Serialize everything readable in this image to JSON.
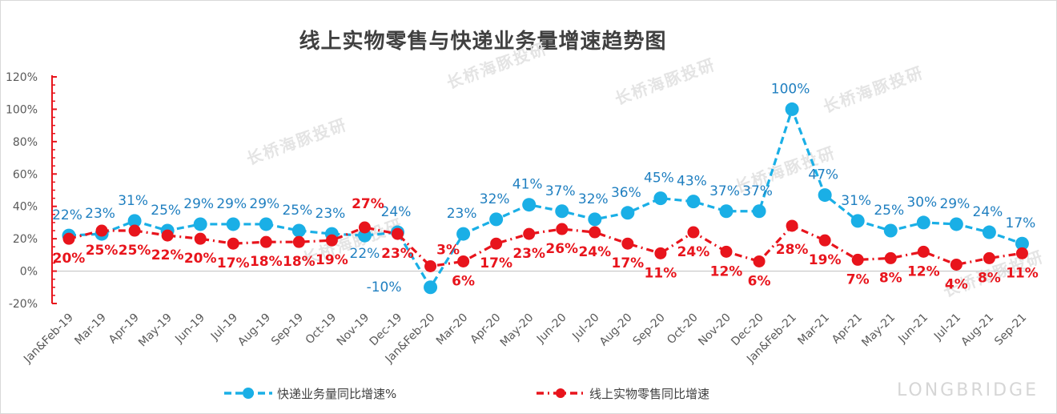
{
  "chart_data": {
    "type": "line",
    "title": "线上实物零售与快递业务量增速趋势图",
    "xlabel": "",
    "ylabel": "",
    "ylim": [
      -20,
      120
    ],
    "yticks": [
      "120%",
      "100%",
      "80%",
      "60%",
      "40%",
      "20%",
      "0%",
      "-20%"
    ],
    "grid": false,
    "legend_position": "bottom",
    "categories": [
      "Jan&Feb-19",
      "Mar-19",
      "Apr-19",
      "May-19",
      "Jun-19",
      "Jul-19",
      "Aug-19",
      "Sep-19",
      "Oct-19",
      "Nov-19",
      "Dec-19",
      "Jan&Feb-20",
      "Mar-20",
      "Apr-20",
      "May-20",
      "Jun-20",
      "Jul-20",
      "Aug-20",
      "Sep-20",
      "Oct-20",
      "Nov-20",
      "Dec-20",
      "Jan&Feb-21",
      "Mar-21",
      "Apr-21",
      "May-21",
      "Jun-21",
      "Jul-21",
      "Aug-21",
      "Sep-21"
    ],
    "series": [
      {
        "name": "快递业务量同比增速%",
        "color": "#1aafe6",
        "values": [
          22,
          23,
          31,
          25,
          29,
          29,
          29,
          25,
          23,
          22,
          24,
          -10,
          23,
          32,
          41,
          37,
          32,
          36,
          45,
          43,
          37,
          37,
          100,
          47,
          31,
          25,
          30,
          29,
          24,
          17
        ],
        "labels": [
          "22%",
          "23%",
          "31%",
          "25%",
          "29%",
          "29%",
          "29%",
          "25%",
          "23%",
          "22%",
          "24%",
          "-10%",
          "23%",
          "32%",
          "41%",
          "37%",
          "32%",
          "36%",
          "45%",
          "43%",
          "37%",
          "37%",
          "100%",
          "47%",
          "31%",
          "25%",
          "30%",
          "29%",
          "24%",
          "17%"
        ]
      },
      {
        "name": "线上实物零售同比增速",
        "color": "#e8141c",
        "values": [
          20,
          25,
          25,
          22,
          20,
          17,
          18,
          18,
          19,
          27,
          23,
          3,
          6,
          17,
          23,
          26,
          24,
          17,
          11,
          24,
          12,
          6,
          28,
          19,
          7,
          8,
          12,
          4,
          8,
          11
        ],
        "labels": [
          "20%",
          "25%",
          "25%",
          "22%",
          "20%",
          "17%",
          "18%",
          "18%",
          "19%",
          "27%",
          "23%",
          "3%",
          "6%",
          "17%",
          "23%",
          "26%",
          "24%",
          "17%",
          "11%",
          "24%",
          "12%",
          "6%",
          "28%",
          "19%",
          "7%",
          "8%",
          "12%",
          "4%",
          "8%",
          "11%"
        ]
      }
    ]
  },
  "watermarks": {
    "text": "长桥海豚投研",
    "brand": "LONGBRIDGE"
  }
}
